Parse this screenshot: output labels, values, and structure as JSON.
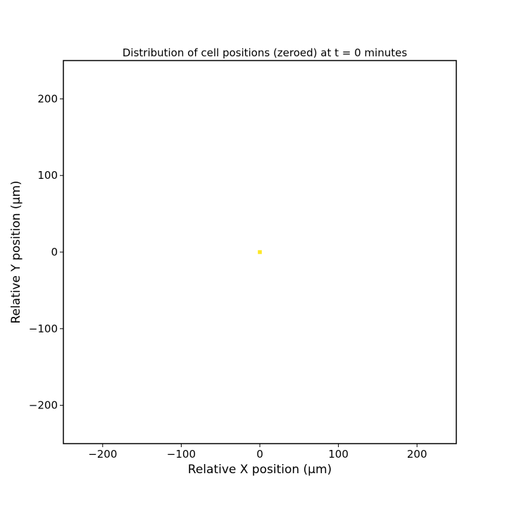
{
  "chart_data": {
    "type": "heatmap",
    "title": "Distribution of cell positions (zeroed) at t = 0 minutes",
    "xlabel": "Relative X position (μm)",
    "ylabel": "Relative Y position (μm)",
    "xlim": [
      -250,
      250
    ],
    "ylim": [
      -250,
      250
    ],
    "xticks": [
      -200,
      -100,
      0,
      100,
      200
    ],
    "yticks": [
      -200,
      -100,
      0,
      100,
      200
    ],
    "xtick_labels": [
      "−200",
      "−100",
      "0",
      "100",
      "200"
    ],
    "ytick_labels": [
      "−200",
      "−100",
      "0",
      "100",
      "200"
    ],
    "grid": false,
    "cells": [
      {
        "x": 0,
        "y": 0,
        "width": 5,
        "height": 5,
        "color": "#fde725"
      }
    ]
  }
}
